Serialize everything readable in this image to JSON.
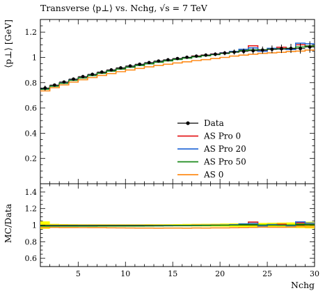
{
  "chart_data": [
    {
      "type": "line",
      "panel": "main",
      "title": "Transverse ⟨p⊥⟩ vs. Nchg, √s = 7 TeV",
      "ylabel": "⟨p⊥⟩ [GeV]",
      "xlim": [
        1,
        30
      ],
      "ylim": [
        0,
        1.3
      ],
      "yticks": [
        "0.2",
        "0.4",
        "0.6",
        "0.8",
        "1",
        "1.2"
      ],
      "x": [
        1.5,
        2.5,
        3.5,
        4.5,
        5.5,
        6.5,
        7.5,
        8.5,
        9.5,
        10.5,
        11.5,
        12.5,
        13.5,
        14.5,
        15.5,
        16.5,
        17.5,
        18.5,
        19.5,
        20.5,
        21.5,
        22.5,
        23.5,
        24.5,
        25.5,
        26.5,
        27.5,
        28.5,
        29.5
      ],
      "data": {
        "name": "Data",
        "color": "#000000",
        "values": [
          0.757,
          0.781,
          0.805,
          0.828,
          0.848,
          0.866,
          0.884,
          0.901,
          0.917,
          0.932,
          0.946,
          0.959,
          0.971,
          0.981,
          0.991,
          1.001,
          1.01,
          1.018,
          1.025,
          1.034,
          1.042,
          1.048,
          1.053,
          1.058,
          1.064,
          1.068,
          1.071,
          1.07,
          1.082
        ],
        "errors": [
          0.02,
          0.01,
          0.008,
          0.008,
          0.007,
          0.007,
          0.007,
          0.007,
          0.007,
          0.007,
          0.007,
          0.008,
          0.008,
          0.009,
          0.01,
          0.011,
          0.012,
          0.013,
          0.015,
          0.017,
          0.02,
          0.022,
          0.025,
          0.028,
          0.03,
          0.033,
          0.036,
          0.04,
          0.045
        ]
      },
      "series": [
        {
          "name": "AS Pro 0",
          "color": "#e41a1c",
          "values": [
            0.752,
            0.776,
            0.799,
            0.822,
            0.842,
            0.86,
            0.878,
            0.895,
            0.911,
            0.926,
            0.94,
            0.953,
            0.966,
            0.977,
            0.988,
            0.998,
            1.01,
            1.018,
            1.027,
            1.036,
            1.046,
            1.062,
            1.092,
            1.05,
            1.065,
            1.08,
            1.07,
            1.1,
            1.09
          ]
        },
        {
          "name": "AS Pro 20",
          "color": "#2a6bd8",
          "values": [
            0.75,
            0.774,
            0.797,
            0.82,
            0.84,
            0.858,
            0.876,
            0.893,
            0.909,
            0.924,
            0.938,
            0.951,
            0.964,
            0.975,
            0.986,
            0.996,
            1.007,
            1.016,
            1.025,
            1.035,
            1.047,
            1.064,
            1.075,
            1.048,
            1.072,
            1.066,
            1.062,
            1.112,
            1.108
          ]
        },
        {
          "name": "AS Pro 50",
          "color": "#1a8a1a",
          "values": [
            0.748,
            0.772,
            0.795,
            0.818,
            0.838,
            0.856,
            0.874,
            0.891,
            0.907,
            0.922,
            0.936,
            0.949,
            0.962,
            0.973,
            0.984,
            0.994,
            1.004,
            1.013,
            1.022,
            1.032,
            1.042,
            1.055,
            1.06,
            1.06,
            1.065,
            1.068,
            1.072,
            1.082,
            1.09
          ]
        },
        {
          "name": "AS 0",
          "color": "#ff8c1a",
          "values": [
            0.735,
            0.76,
            0.782,
            0.804,
            0.823,
            0.84,
            0.857,
            0.872,
            0.887,
            0.9,
            0.913,
            0.925,
            0.936,
            0.946,
            0.956,
            0.965,
            0.975,
            0.982,
            0.991,
            1.0,
            1.01,
            1.018,
            1.025,
            1.032,
            1.036,
            1.04,
            1.046,
            1.05,
            1.058
          ]
        }
      ],
      "legend_position": "lower-right",
      "legend": [
        "Data",
        "AS Pro 0",
        "AS Pro 20",
        "AS Pro 50",
        "AS 0"
      ]
    },
    {
      "type": "line",
      "panel": "ratio",
      "ylabel": "MC/Data",
      "xlabel": "Nchg",
      "xlim": [
        1,
        30
      ],
      "ylim": [
        0.5,
        1.5
      ],
      "xticks": [
        "5",
        "10",
        "15",
        "20",
        "25",
        "30"
      ],
      "yticks": [
        "0.6",
        "0.8",
        "1",
        "1.2",
        "1.4"
      ],
      "band_color": "#ffff00",
      "band_halfwidth": [
        0.045,
        0.015,
        0.012,
        0.011,
        0.01,
        0.01,
        0.01,
        0.01,
        0.01,
        0.01,
        0.01,
        0.011,
        0.011,
        0.012,
        0.013,
        0.014,
        0.015,
        0.016,
        0.017,
        0.019,
        0.021,
        0.023,
        0.025,
        0.027,
        0.029,
        0.031,
        0.033,
        0.036,
        0.04
      ]
    }
  ]
}
